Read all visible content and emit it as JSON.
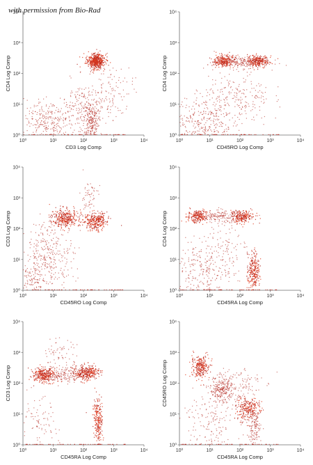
{
  "credit": "with permission from Bio-Rad",
  "colors": {
    "dot": "#b3261e",
    "dense": "#e23a1c",
    "axis": "#6e6e6e"
  },
  "chart_data": [
    {
      "type": "scatter",
      "log": true,
      "xlim": [
        1,
        10000
      ],
      "ylim": [
        1,
        10000
      ],
      "xlabel": "CD3 Log Comp",
      "ylabel": "CD4 Log Comp",
      "xticks": [
        "10⁰",
        "10¹",
        "10²",
        "10³",
        "10⁴"
      ],
      "yticks": [
        "10⁰",
        "10¹",
        "10²",
        "10³",
        "10⁴"
      ],
      "clusters": [
        {
          "x": 250,
          "y": 250,
          "n": 500,
          "sx": 0.15,
          "sy": 0.12,
          "dense": true
        },
        {
          "x": 180,
          "y": 3,
          "n": 220,
          "sx": 0.12,
          "sy": 0.28
        },
        {
          "x": 8,
          "y": 2.5,
          "n": 320,
          "sx": 0.55,
          "sy": 0.35
        },
        {
          "x": 120,
          "y": 10,
          "n": 180,
          "sx": 0.45,
          "sy": 0.38
        },
        {
          "x": 900,
          "y": 30,
          "n": 90,
          "sx": 0.35,
          "sy": 0.45
        }
      ]
    },
    {
      "type": "scatter",
      "log": true,
      "xlim": [
        1,
        10000
      ],
      "ylim": [
        1,
        10000
      ],
      "xlabel": "CD45RO Log Comp",
      "ylabel": "CD4 Log Comp",
      "xticks": [
        "10⁰",
        "10¹",
        "10²",
        "10³",
        "10⁴"
      ],
      "yticks": [
        "10⁰",
        "10¹",
        "10²",
        "10³",
        "10⁴"
      ],
      "clusters": [
        {
          "x": 30,
          "y": 250,
          "n": 260,
          "sx": 0.18,
          "sy": 0.1,
          "dense": true
        },
        {
          "x": 400,
          "y": 250,
          "n": 240,
          "sx": 0.17,
          "sy": 0.1,
          "dense": true
        },
        {
          "x": 110,
          "y": 230,
          "n": 200,
          "sx": 0.45,
          "sy": 0.1
        },
        {
          "x": 6,
          "y": 3,
          "n": 300,
          "sx": 0.5,
          "sy": 0.4
        },
        {
          "x": 80,
          "y": 15,
          "n": 220,
          "sx": 0.55,
          "sy": 0.45
        }
      ]
    },
    {
      "type": "scatter",
      "log": true,
      "xlim": [
        1,
        10000
      ],
      "ylim": [
        1,
        10000
      ],
      "xlabel": "CD45RO Log Comp",
      "ylabel": "CD3 Log Comp",
      "xticks": [
        "10⁰",
        "10¹",
        "10²",
        "10³",
        "10⁴"
      ],
      "yticks": [
        "10⁰",
        "10¹",
        "10²",
        "10³",
        "10⁴"
      ],
      "clusters": [
        {
          "x": 25,
          "y": 220,
          "n": 320,
          "sx": 0.22,
          "sy": 0.14,
          "dense": true
        },
        {
          "x": 250,
          "y": 170,
          "n": 300,
          "sx": 0.2,
          "sy": 0.14,
          "dense": true
        },
        {
          "x": 8,
          "y": 15,
          "n": 320,
          "sx": 0.4,
          "sy": 0.55
        },
        {
          "x": 2,
          "y": 2,
          "n": 110,
          "sx": 0.2,
          "sy": 0.3
        },
        {
          "x": 150,
          "y": 1000,
          "n": 60,
          "sx": 0.15,
          "sy": 0.3
        }
      ]
    },
    {
      "type": "scatter",
      "log": true,
      "xlim": [
        1,
        10000
      ],
      "ylim": [
        1,
        10000
      ],
      "xlabel": "CD45RA Log Comp",
      "ylabel": "CD4 Log Comp",
      "xticks": [
        "10⁰",
        "10¹",
        "10²",
        "10³",
        "10⁴"
      ],
      "yticks": [
        "10⁰",
        "10¹",
        "10²",
        "10³",
        "10⁴"
      ],
      "clusters": [
        {
          "x": 4,
          "y": 250,
          "n": 220,
          "sx": 0.16,
          "sy": 0.1,
          "dense": true
        },
        {
          "x": 120,
          "y": 250,
          "n": 220,
          "sx": 0.2,
          "sy": 0.1,
          "dense": true
        },
        {
          "x": 25,
          "y": 250,
          "n": 160,
          "sx": 0.35,
          "sy": 0.1
        },
        {
          "x": 280,
          "y": 4,
          "n": 250,
          "sx": 0.1,
          "sy": 0.3,
          "dense": true
        },
        {
          "x": 5,
          "y": 4,
          "n": 220,
          "sx": 0.45,
          "sy": 0.45
        },
        {
          "x": 30,
          "y": 20,
          "n": 120,
          "sx": 0.4,
          "sy": 0.5
        }
      ]
    },
    {
      "type": "scatter",
      "log": true,
      "xlim": [
        1,
        10000
      ],
      "ylim": [
        1,
        10000
      ],
      "xlabel": "CD45RA Log Comp",
      "ylabel": "CD3 Log Comp",
      "xticks": [
        "10⁰",
        "10¹",
        "10²",
        "10³",
        "10⁴"
      ],
      "yticks": [
        "10⁰",
        "10¹",
        "10²",
        "10³",
        "10⁴"
      ],
      "clusters": [
        {
          "x": 5,
          "y": 180,
          "n": 300,
          "sx": 0.18,
          "sy": 0.12,
          "dense": true
        },
        {
          "x": 130,
          "y": 220,
          "n": 300,
          "sx": 0.2,
          "sy": 0.12,
          "dense": true
        },
        {
          "x": 30,
          "y": 200,
          "n": 200,
          "sx": 0.35,
          "sy": 0.15
        },
        {
          "x": 300,
          "y": 6,
          "n": 220,
          "sx": 0.08,
          "sy": 0.35,
          "dense": true
        },
        {
          "x": 3,
          "y": 4,
          "n": 90,
          "sx": 0.35,
          "sy": 0.45
        },
        {
          "x": 15,
          "y": 900,
          "n": 60,
          "sx": 0.3,
          "sy": 0.25
        }
      ]
    },
    {
      "type": "scatter",
      "log": true,
      "xlim": [
        1,
        10000
      ],
      "ylim": [
        1,
        10000
      ],
      "xlabel": "CD45RA Log Comp",
      "ylabel": "CD45RO Log Comp",
      "xticks": [
        "10⁰",
        "10¹",
        "10²",
        "10³",
        "10⁴"
      ],
      "yticks": [
        "10⁰",
        "10¹",
        "10²",
        "10³",
        "10⁴"
      ],
      "clusters": [
        {
          "x": 5,
          "y": 350,
          "n": 260,
          "sx": 0.15,
          "sy": 0.18,
          "dense": true
        },
        {
          "x": 25,
          "y": 60,
          "n": 260,
          "sx": 0.2,
          "sy": 0.2
        },
        {
          "x": 180,
          "y": 15,
          "n": 240,
          "sx": 0.2,
          "sy": 0.18,
          "dense": true
        },
        {
          "x": 300,
          "y": 4,
          "n": 150,
          "sx": 0.12,
          "sy": 0.3
        },
        {
          "x": 10,
          "y": 6,
          "n": 160,
          "sx": 0.5,
          "sy": 0.45
        },
        {
          "x": 80,
          "y": 100,
          "n": 100,
          "sx": 0.4,
          "sy": 0.3
        }
      ]
    }
  ]
}
